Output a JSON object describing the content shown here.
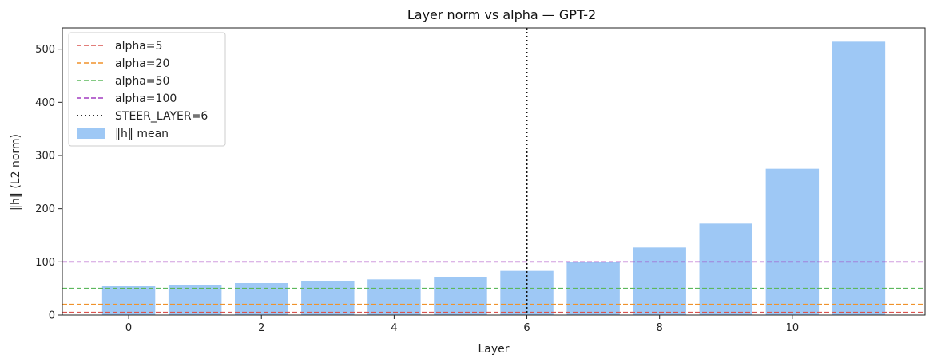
{
  "chart_data": {
    "type": "bar",
    "title": "Layer norm vs alpha — GPT-2",
    "xlabel": "Layer",
    "ylabel": "‖h‖ (L2 norm)",
    "x": [
      0,
      1,
      2,
      3,
      4,
      5,
      6,
      7,
      8,
      9,
      10,
      11
    ],
    "values": [
      54,
      56,
      60,
      63,
      67,
      71,
      83,
      100,
      127,
      172,
      275,
      514
    ],
    "bar_color": "#9ec8f5",
    "bar_series_name": "‖h‖ mean",
    "xlim": [
      -1,
      12
    ],
    "ylim": [
      0,
      540
    ],
    "xticks": [
      0,
      2,
      4,
      6,
      8,
      10
    ],
    "yticks": [
      0,
      100,
      200,
      300,
      400,
      500
    ],
    "hlines": [
      {
        "name": "alpha=5",
        "y": 5,
        "color": "#d9534f"
      },
      {
        "name": "alpha=20",
        "y": 20,
        "color": "#f0922b"
      },
      {
        "name": "alpha=50",
        "y": 50,
        "color": "#5cb85c"
      },
      {
        "name": "alpha=100",
        "y": 100,
        "color": "#a23cc0"
      }
    ],
    "vline": {
      "name": "STEER_LAYER=6",
      "x": 6,
      "color": "#111111"
    },
    "legend": "top-left",
    "grid": false
  }
}
